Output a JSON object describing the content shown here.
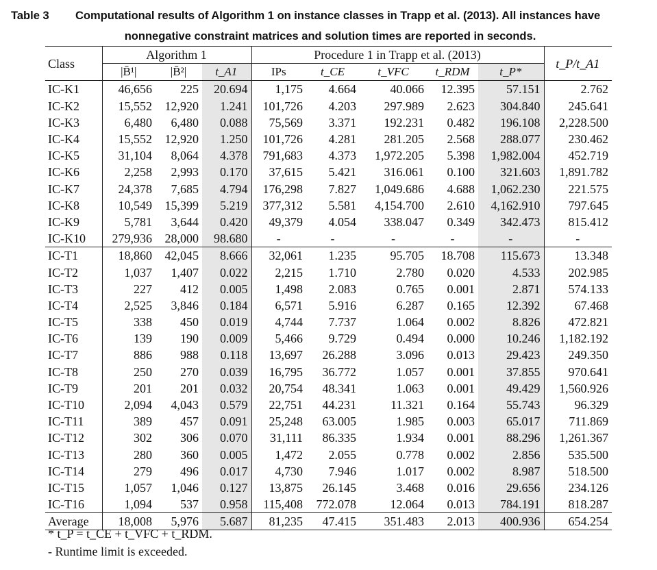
{
  "caption": {
    "label": "Table 3",
    "line1": "Computational results of Algorithm 1 on instance classes in Trapp et al. (2013). All instances have",
    "line2": "nonnegative constraint matrices and solution times are reported in seconds."
  },
  "header": {
    "class": "Class",
    "group_alg": "Algorithm 1",
    "group_proc": "Procedure 1 in Trapp et al. (2013)",
    "ratio": "t_P/t_A1",
    "b1": "|B̄¹|",
    "b2": "|B̄²|",
    "ta1": "t_A1",
    "ips": "IPs",
    "tce": "t_CE",
    "tvfc": "t_VFC",
    "trdm": "t_RDM",
    "tp": "t_P*"
  },
  "rows_k": [
    [
      "IC-K1",
      "46,656",
      "225",
      "20.694",
      "1,175",
      "4.664",
      "40.066",
      "12.395",
      "57.151",
      "2.762"
    ],
    [
      "IC-K2",
      "15,552",
      "12,920",
      "1.241",
      "101,726",
      "4.203",
      "297.989",
      "2.623",
      "304.840",
      "245.641"
    ],
    [
      "IC-K3",
      "6,480",
      "6,480",
      "0.088",
      "75,569",
      "3.371",
      "192.231",
      "0.482",
      "196.108",
      "2,228.500"
    ],
    [
      "IC-K4",
      "15,552",
      "12,920",
      "1.250",
      "101,726",
      "4.281",
      "281.205",
      "2.568",
      "288.077",
      "230.462"
    ],
    [
      "IC-K5",
      "31,104",
      "8,064",
      "4.378",
      "791,683",
      "4.373",
      "1,972.205",
      "5.398",
      "1,982.004",
      "452.719"
    ],
    [
      "IC-K6",
      "2,258",
      "2,993",
      "0.170",
      "37,615",
      "5.421",
      "316.061",
      "0.100",
      "321.603",
      "1,891.782"
    ],
    [
      "IC-K7",
      "24,378",
      "7,685",
      "4.794",
      "176,298",
      "7.827",
      "1,049.686",
      "4.688",
      "1,062.230",
      "221.575"
    ],
    [
      "IC-K8",
      "10,549",
      "15,399",
      "5.219",
      "377,312",
      "5.581",
      "4,154.700",
      "2.610",
      "4,162.910",
      "797.645"
    ],
    [
      "IC-K9",
      "5,781",
      "3,644",
      "0.420",
      "49,379",
      "4.054",
      "338.047",
      "0.349",
      "342.473",
      "815.412"
    ],
    [
      "IC-K10",
      "279,936",
      "28,000",
      "98.680",
      "-",
      "-",
      "-",
      "-",
      "-",
      "-"
    ]
  ],
  "rows_t": [
    [
      "IC-T1",
      "18,860",
      "42,045",
      "8.666",
      "32,061",
      "1.235",
      "95.705",
      "18.708",
      "115.673",
      "13.348"
    ],
    [
      "IC-T2",
      "1,037",
      "1,407",
      "0.022",
      "2,215",
      "1.710",
      "2.780",
      "0.020",
      "4.533",
      "202.985"
    ],
    [
      "IC-T3",
      "227",
      "412",
      "0.005",
      "1,498",
      "2.083",
      "0.765",
      "0.001",
      "2.871",
      "574.133"
    ],
    [
      "IC-T4",
      "2,525",
      "3,846",
      "0.184",
      "6,571",
      "5.916",
      "6.287",
      "0.165",
      "12.392",
      "67.468"
    ],
    [
      "IC-T5",
      "338",
      "450",
      "0.019",
      "4,744",
      "7.737",
      "1.064",
      "0.002",
      "8.826",
      "472.821"
    ],
    [
      "IC-T6",
      "139",
      "190",
      "0.009",
      "5,466",
      "9.729",
      "0.494",
      "0.000",
      "10.246",
      "1,182.192"
    ],
    [
      "IC-T7",
      "886",
      "988",
      "0.118",
      "13,697",
      "26.288",
      "3.096",
      "0.013",
      "29.423",
      "249.350"
    ],
    [
      "IC-T8",
      "250",
      "270",
      "0.039",
      "16,795",
      "36.772",
      "1.057",
      "0.001",
      "37.855",
      "970.641"
    ],
    [
      "IC-T9",
      "201",
      "201",
      "0.032",
      "20,754",
      "48.341",
      "1.063",
      "0.001",
      "49.429",
      "1,560.926"
    ],
    [
      "IC-T10",
      "2,094",
      "4,043",
      "0.579",
      "22,751",
      "44.231",
      "11.321",
      "0.164",
      "55.743",
      "96.329"
    ],
    [
      "IC-T11",
      "389",
      "457",
      "0.091",
      "25,248",
      "63.005",
      "1.985",
      "0.003",
      "65.017",
      "711.869"
    ],
    [
      "IC-T12",
      "302",
      "306",
      "0.070",
      "31,111",
      "86.335",
      "1.934",
      "0.001",
      "88.296",
      "1,261.367"
    ],
    [
      "IC-T13",
      "280",
      "360",
      "0.005",
      "1,472",
      "2.055",
      "0.778",
      "0.002",
      "2.856",
      "535.500"
    ],
    [
      "IC-T14",
      "279",
      "496",
      "0.017",
      "4,730",
      "7.946",
      "1.017",
      "0.002",
      "8.987",
      "518.500"
    ],
    [
      "IC-T15",
      "1,057",
      "1,046",
      "0.127",
      "13,875",
      "26.145",
      "3.468",
      "0.016",
      "29.656",
      "234.126"
    ],
    [
      "IC-T16",
      "1,094",
      "537",
      "0.958",
      "115,408",
      "772.078",
      "12.064",
      "0.013",
      "784.191",
      "818.287"
    ]
  ],
  "average": [
    "Average",
    "18,008",
    "5,976",
    "5.687",
    "81,235",
    "47.415",
    "351.483",
    "2.013",
    "400.936",
    "654.254"
  ],
  "notes": {
    "star": "* t_P = t_CE + t_VFC + t_RDM.",
    "dash": "- Runtime limit is exceeded."
  }
}
